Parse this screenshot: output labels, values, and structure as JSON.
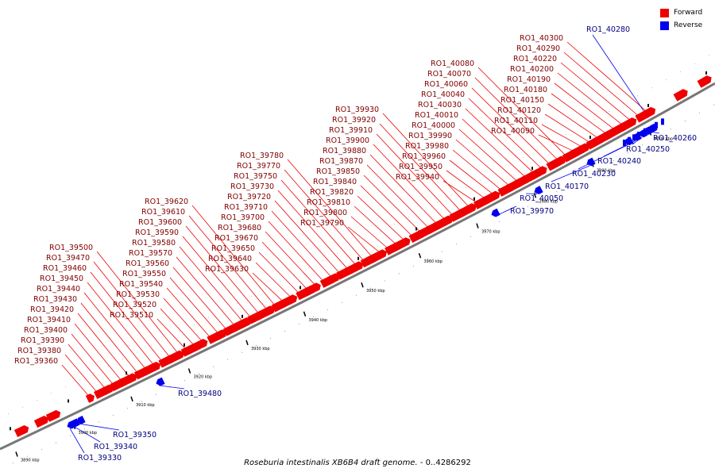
{
  "caption": {
    "organism": "Roseburia intestinalis XB6B4 draft genome.",
    "range": " - 0..4286292"
  },
  "legend": [
    {
      "label": "Forward",
      "color": "#ee0000"
    },
    {
      "label": "Reverse",
      "color": "#0000ee"
    }
  ],
  "colors": {
    "forward": "#ee0000",
    "reverse": "#0000ee",
    "backbone": "#777777",
    "tick": "#000000"
  },
  "ticks": [
    {
      "kbp": 3890,
      "label": "3890 kbp"
    },
    {
      "kbp": 3900,
      "label": "3900 kbp"
    },
    {
      "kbp": 3910,
      "label": "3910 kbp"
    },
    {
      "kbp": 3920,
      "label": "3920 kbp"
    },
    {
      "kbp": 3930,
      "label": "3930 kbp"
    },
    {
      "kbp": 3940,
      "label": "3940 kbp"
    },
    {
      "kbp": 3950,
      "label": "3950 kbp"
    },
    {
      "kbp": 3960,
      "label": "3960 kbp"
    },
    {
      "kbp": 3970,
      "label": "3970 kbp"
    },
    {
      "kbp": 3980,
      "label": "3980 kbp"
    },
    {
      "kbp": 3990,
      "label": "3990 kbp"
    },
    {
      "kbp": 4000,
      "label": "4000 kbp"
    }
  ],
  "genes_forward": [
    "RO1_39360",
    "RO1_39380",
    "RO1_39390",
    "RO1_39400",
    "RO1_39410",
    "RO1_39420",
    "RO1_39430",
    "RO1_39440",
    "RO1_39450",
    "RO1_39460",
    "RO1_39470",
    "RO1_39500",
    "RO1_39510",
    "RO1_39520",
    "RO1_39530",
    "RO1_39540",
    "RO1_39550",
    "RO1_39560",
    "RO1_39570",
    "RO1_39580",
    "RO1_39590",
    "RO1_39600",
    "RO1_39610",
    "RO1_39620",
    "RO1_39630",
    "RO1_39640",
    "RO1_39650",
    "RO1_39670",
    "RO1_39680",
    "RO1_39700",
    "RO1_39710",
    "RO1_39720",
    "RO1_39730",
    "RO1_39750",
    "RO1_39770",
    "RO1_39780",
    "RO1_39790",
    "RO1_39800",
    "RO1_39810",
    "RO1_39820",
    "RO1_39840",
    "RO1_39850",
    "RO1_39870",
    "RO1_39880",
    "RO1_39900",
    "RO1_39910",
    "RO1_39920",
    "RO1_39930",
    "RO1_39940",
    "RO1_39950",
    "RO1_39960",
    "RO1_39980",
    "RO1_39990",
    "RO1_40000",
    "RO1_40010",
    "RO1_40030",
    "RO1_40040",
    "RO1_40060",
    "RO1_40070",
    "RO1_40080",
    "RO1_40090",
    "RO1_40110",
    "RO1_40120",
    "RO1_40150",
    "RO1_40180",
    "RO1_40190",
    "RO1_40200",
    "RO1_40220",
    "RO1_40290",
    "RO1_40300"
  ],
  "genes_reverse": [
    "RO1_39330",
    "RO1_39340",
    "RO1_39350",
    "RO1_39480",
    "RO1_39970",
    "RO1_40050",
    "RO1_40170",
    "RO1_40230",
    "RO1_40240",
    "RO1_40250",
    "RO1_40260",
    "RO1_40280"
  ]
}
